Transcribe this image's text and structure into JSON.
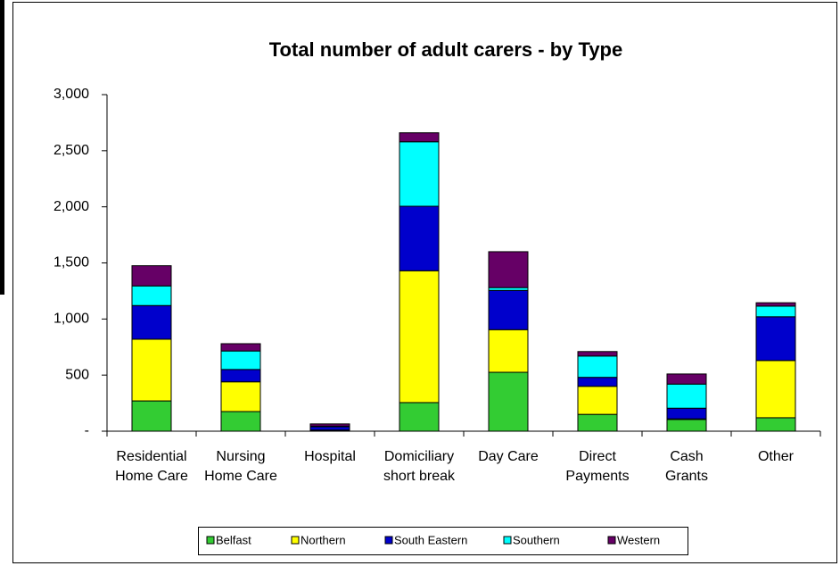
{
  "chart_data": {
    "type": "stacked_bar",
    "title": "Total number of adult carers - by Type",
    "categories": [
      [
        "Residential",
        "Home Care"
      ],
      [
        "Nursing",
        "Home Care"
      ],
      [
        "Hospital"
      ],
      [
        "Domiciliary",
        "short break"
      ],
      [
        "Day Care"
      ],
      [
        "Direct",
        "Payments"
      ],
      [
        "Cash",
        "Grants"
      ],
      [
        "Other"
      ]
    ],
    "series": [
      {
        "name": "Belfast",
        "color": "#33cc33",
        "values": [
          270,
          175,
          5,
          255,
          525,
          150,
          105,
          120
        ]
      },
      {
        "name": "Northern",
        "color": "#ffff00",
        "values": [
          550,
          265,
          5,
          1175,
          380,
          250,
          5,
          510
        ]
      },
      {
        "name": "South Eastern",
        "color": "#0000cc",
        "values": [
          300,
          110,
          30,
          575,
          350,
          80,
          95,
          390
        ]
      },
      {
        "name": "Southern",
        "color": "#00ffff",
        "values": [
          175,
          165,
          5,
          575,
          25,
          190,
          215,
          95
        ]
      },
      {
        "name": "Western",
        "color": "#660066",
        "values": [
          180,
          65,
          20,
          80,
          320,
          40,
          90,
          30
        ]
      }
    ],
    "ylim": [
      0,
      3000
    ],
    "yticks": [
      {
        "value": 0,
        "label": "-"
      },
      500,
      {
        "value": 1000,
        "label": "1,000"
      },
      {
        "value": 1500,
        "label": "1,500"
      },
      {
        "value": 2000,
        "label": "2,000"
      },
      {
        "value": 2500,
        "label": "2,500"
      },
      {
        "value": 3000,
        "label": "3,000"
      }
    ],
    "legend": "bottom"
  }
}
